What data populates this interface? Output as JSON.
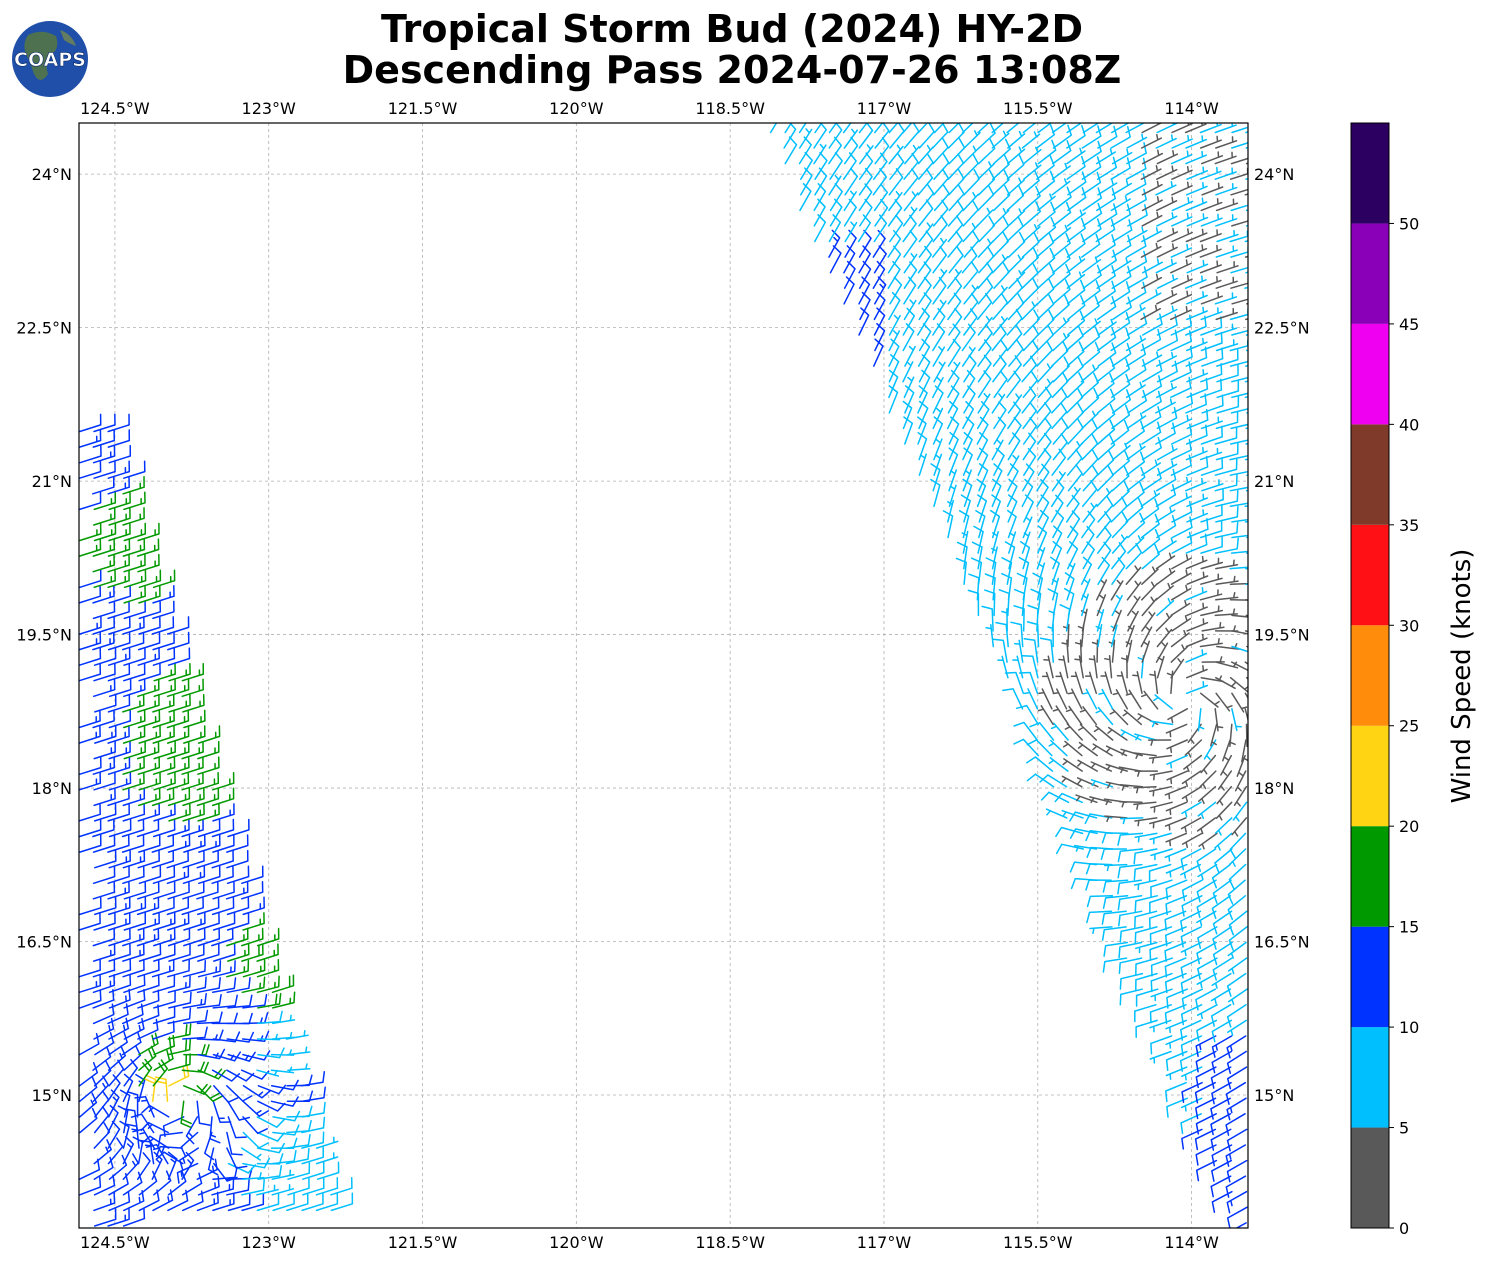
{
  "logo": {
    "text": "COAPS"
  },
  "title": {
    "line1": "Tropical Storm Bud (2024) HY-2D",
    "line2": "Descending Pass 2024-07-26 13:08Z"
  },
  "chart_data": {
    "type": "map",
    "projection": "PlateCarree",
    "lon_range": [
      -124.85,
      -113.45
    ],
    "lat_range": [
      13.7,
      24.5
    ],
    "xticks": [
      {
        "value": -124.5,
        "label": "124.5°W"
      },
      {
        "value": -123.0,
        "label": "123°W"
      },
      {
        "value": -121.5,
        "label": "121.5°W"
      },
      {
        "value": -120.0,
        "label": "120°W"
      },
      {
        "value": -118.5,
        "label": "118.5°W"
      },
      {
        "value": -117.0,
        "label": "117°W"
      },
      {
        "value": -115.5,
        "label": "115.5°W"
      },
      {
        "value": -114.0,
        "label": "114°W"
      }
    ],
    "yticks": [
      {
        "value": 24.0,
        "label": "24°N"
      },
      {
        "value": 22.5,
        "label": "22.5°N"
      },
      {
        "value": 21.0,
        "label": "21°N"
      },
      {
        "value": 19.5,
        "label": "19.5°N"
      },
      {
        "value": 18.0,
        "label": "18°N"
      },
      {
        "value": 16.5,
        "label": "16.5°N"
      },
      {
        "value": 15.0,
        "label": "15°N"
      }
    ],
    "gridlines": true,
    "storm_center": {
      "lon": -114.05,
      "lat": 18.85
    },
    "swaths": [
      {
        "name": "west-swath",
        "polygon": [
          [
            -124.85,
            21.5
          ],
          [
            -124.55,
            21.55
          ],
          [
            -122.3,
            13.8
          ],
          [
            -124.85,
            13.7
          ]
        ],
        "flow": "easterly-cyclonic",
        "center": {
          "lon": -123.9,
          "lat": 14.95
        },
        "base_speed_kt": 12,
        "fast_patches": [
          {
            "lon": -124.35,
            "lat": 20.35,
            "r": 0.55,
            "speed_kt": 16
          },
          {
            "lon": -123.8,
            "lat": 18.4,
            "r": 0.75,
            "speed_kt": 16
          },
          {
            "lon": -123.0,
            "lat": 16.3,
            "r": 0.5,
            "speed_kt": 17
          },
          {
            "lon": -124.0,
            "lat": 15.2,
            "r": 0.35,
            "speed_kt": 19
          },
          {
            "lon": -124.0,
            "lat": 14.95,
            "r": 0.15,
            "speed_kt": 21
          }
        ],
        "slow_patches": [
          {
            "lon": -122.8,
            "lat": 14.3,
            "r": 0.6,
            "speed_kt": 8
          },
          {
            "lon": -122.9,
            "lat": 15.45,
            "r": 0.35,
            "speed_kt": 7
          }
        ]
      },
      {
        "name": "east-swath",
        "polygon": [
          [
            -118.2,
            24.5
          ],
          [
            -113.45,
            24.5
          ],
          [
            -113.45,
            13.7
          ],
          [
            -113.5,
            13.7
          ],
          [
            -118.2,
            24.5
          ]
        ],
        "flow": "cyclonic",
        "center": {
          "lon": -114.05,
          "lat": 18.85
        },
        "base_speed_kt": 8,
        "light_core_radius_deg": 0.85,
        "light_core_speed_kt": 3
      }
    ],
    "colorbar": {
      "label": "Wind Speed (knots)",
      "bounds": [
        0,
        5,
        10,
        15,
        20,
        25,
        30,
        35,
        40,
        45,
        50,
        55
      ],
      "tick_labels": [
        "0",
        "5",
        "10",
        "15",
        "20",
        "25",
        "30",
        "35",
        "40",
        "45",
        "50"
      ],
      "colors": [
        "#595959",
        "#00bfff",
        "#0033ff",
        "#009900",
        "#ffd413",
        "#ff8c0a",
        "#ff1014",
        "#7f3a2a",
        "#f000f0",
        "#8a00b9",
        "#2b0060"
      ]
    }
  }
}
